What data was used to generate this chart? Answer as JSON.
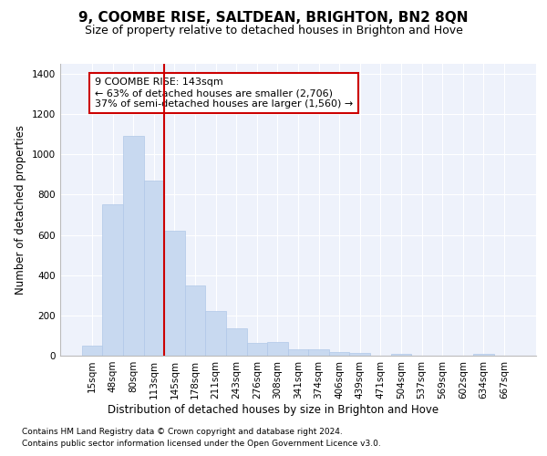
{
  "title": "9, COOMBE RISE, SALTDEAN, BRIGHTON, BN2 8QN",
  "subtitle": "Size of property relative to detached houses in Brighton and Hove",
  "xlabel": "Distribution of detached houses by size in Brighton and Hove",
  "ylabel": "Number of detached properties",
  "footnote1": "Contains HM Land Registry data © Crown copyright and database right 2024.",
  "footnote2": "Contains public sector information licensed under the Open Government Licence v3.0.",
  "annotation_line1": "9 COOMBE RISE: 143sqm",
  "annotation_line2": "← 63% of detached houses are smaller (2,706)",
  "annotation_line3": "37% of semi-detached houses are larger (1,560) →",
  "bar_color": "#c8d9f0",
  "bar_edge_color": "#b0c8e8",
  "vline_color": "#cc0000",
  "vline_index": 4,
  "categories": [
    "15sqm",
    "48sqm",
    "80sqm",
    "113sqm",
    "145sqm",
    "178sqm",
    "211sqm",
    "243sqm",
    "276sqm",
    "308sqm",
    "341sqm",
    "374sqm",
    "406sqm",
    "439sqm",
    "471sqm",
    "504sqm",
    "537sqm",
    "569sqm",
    "602sqm",
    "634sqm",
    "667sqm"
  ],
  "values": [
    50,
    750,
    1090,
    870,
    620,
    350,
    220,
    135,
    65,
    70,
    30,
    30,
    20,
    15,
    0,
    10,
    0,
    0,
    0,
    10,
    0
  ],
  "ylim": [
    0,
    1450
  ],
  "yticks": [
    0,
    200,
    400,
    600,
    800,
    1000,
    1200,
    1400
  ],
  "background_color": "#eef2fb",
  "grid_color": "#ffffff",
  "title_fontsize": 11,
  "subtitle_fontsize": 9,
  "annotation_fontsize": 8,
  "axis_fontsize": 7.5,
  "xlabel_fontsize": 8.5,
  "ylabel_fontsize": 8.5
}
